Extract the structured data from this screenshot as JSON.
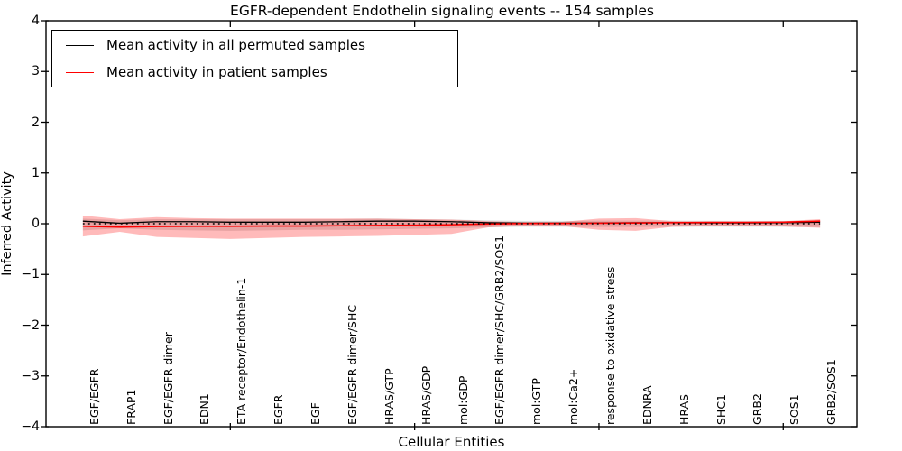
{
  "chart_data": {
    "type": "line",
    "title": "EGFR-dependent Endothelin signaling events -- 154 samples",
    "xlabel": "Cellular Entities",
    "ylabel": "Inferred Activity",
    "ylim": [
      -4,
      4
    ],
    "xlim": [
      0,
      22
    ],
    "grid": false,
    "legend_position": "upper left",
    "yticks": [
      {
        "value": 4,
        "label": "4"
      },
      {
        "value": 3,
        "label": "3"
      },
      {
        "value": 2,
        "label": "2"
      },
      {
        "value": 1,
        "label": "1"
      },
      {
        "value": 0,
        "label": "0"
      },
      {
        "value": -1,
        "label": "−1"
      },
      {
        "value": -2,
        "label": "−2"
      },
      {
        "value": -3,
        "label": "−3"
      },
      {
        "value": -4,
        "label": "−4"
      }
    ],
    "x_major_ticks": [
      5,
      10,
      15,
      20
    ],
    "categories": [
      "EGF/EGFR",
      "FRAP1",
      "EGF/EGFR dimer",
      "EDN1",
      "ETA receptor/Endothelin-1",
      "EGFR",
      "EGF",
      "EGF/EGFR dimer/SHC",
      "HRAS/GTP",
      "HRAS/GDP",
      "mol:GDP",
      "EGF/EGFR dimer/SHC/GRB2/SOS1",
      "mol:GTP",
      "mol:Ca2+",
      "response to oxidative stress",
      "EDNRA",
      "HRAS",
      "SHC1",
      "GRB2",
      "SOS1",
      "GRB2/SOS1"
    ],
    "x": [
      1,
      2,
      3,
      4,
      5,
      6,
      7,
      8,
      9,
      10,
      11,
      12,
      13,
      14,
      15,
      16,
      17,
      18,
      19,
      20,
      21
    ],
    "series": [
      {
        "name": "Mean activity in all permuted samples",
        "color": "#000000",
        "style": "solid",
        "values": [
          0.05,
          0.01,
          0.04,
          0.04,
          0.03,
          0.03,
          0.03,
          0.04,
          0.05,
          0.05,
          0.04,
          0.02,
          0.01,
          0.01,
          0.015,
          0.02,
          0.02,
          0.015,
          0.015,
          0.02,
          0.03
        ]
      },
      {
        "name": "Mean activity in patient samples",
        "color": "#ff0000",
        "style": "solid",
        "values": [
          -0.05,
          -0.065,
          -0.055,
          -0.05,
          -0.05,
          -0.045,
          -0.045,
          -0.04,
          -0.035,
          -0.03,
          -0.02,
          -0.005,
          0.005,
          0.005,
          0.01,
          0.015,
          0.02,
          0.025,
          0.025,
          0.03,
          0.05
        ]
      }
    ],
    "bands": [
      {
        "name": "permuted-std-band",
        "color": "#000000",
        "opacity": 0.13,
        "upper": [
          0.1,
          0.07,
          0.09,
          0.09,
          0.09,
          0.09,
          0.09,
          0.09,
          0.1,
          0.09,
          0.08,
          0.065,
          0.055,
          0.055,
          0.06,
          0.06,
          0.06,
          0.055,
          0.055,
          0.055,
          0.07
        ],
        "lower": [
          -0.13,
          -0.09,
          -0.12,
          -0.13,
          -0.14,
          -0.13,
          -0.12,
          -0.12,
          -0.11,
          -0.1,
          -0.09,
          -0.07,
          -0.06,
          -0.06,
          -0.065,
          -0.065,
          -0.06,
          -0.06,
          -0.06,
          -0.06,
          -0.065
        ]
      },
      {
        "name": "patient-std-band",
        "color": "#ff0000",
        "opacity": 0.27,
        "upper": [
          0.16,
          0.09,
          0.13,
          0.11,
          0.1,
          0.1,
          0.1,
          0.1,
          0.1,
          0.09,
          0.08,
          0.05,
          0.03,
          0.035,
          0.1,
          0.11,
          0.05,
          0.04,
          0.04,
          0.045,
          0.09
        ],
        "lower": [
          -0.25,
          -0.16,
          -0.26,
          -0.28,
          -0.3,
          -0.28,
          -0.26,
          -0.25,
          -0.24,
          -0.22,
          -0.2,
          -0.07,
          -0.04,
          -0.045,
          -0.12,
          -0.14,
          -0.06,
          -0.05,
          -0.05,
          -0.055,
          -0.08
        ]
      }
    ],
    "zero_line": {
      "value": 0,
      "style": "dotted",
      "color": "#000000"
    }
  }
}
